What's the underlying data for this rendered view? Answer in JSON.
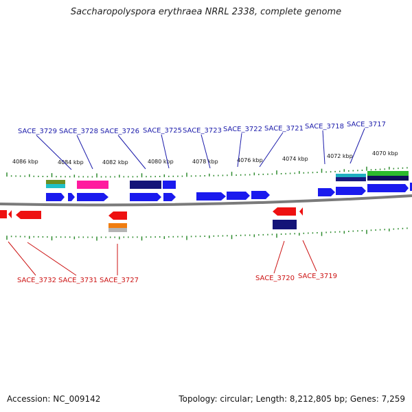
{
  "title": "Saccharopolyspora erythraea NRRL 2338, complete genome",
  "accession": "Accession: NC_009142",
  "summary": "Topology: circular; Length: 8,212,805 bp; Genes: 7,259",
  "colors": {
    "forward_gene": "#1a1aee",
    "reverse_gene": "#ee1111",
    "forward_label": "#1a1aaa",
    "reverse_label": "#cc1111",
    "tick": "#2e8b2e",
    "backbone": "#888888"
  },
  "kbp_ticks": [
    {
      "value": 4086,
      "label": "4086 kbp"
    },
    {
      "value": 4084,
      "label": "4084 kbp"
    },
    {
      "value": 4082,
      "label": "4082 kbp"
    },
    {
      "value": 4080,
      "label": "4080 kbp"
    },
    {
      "value": 4078,
      "label": "4078 kbp"
    },
    {
      "value": 4076,
      "label": "4076 kbp"
    },
    {
      "value": 4074,
      "label": "4074 kbp"
    },
    {
      "value": 4072,
      "label": "4072 kbp"
    },
    {
      "value": 4070,
      "label": "4070 kbp"
    }
  ],
  "forward_gene_labels": [
    "SACE_3729",
    "SACE_3728",
    "SACE_3726",
    "SACE_3725",
    "SACE_3723",
    "SACE_3722",
    "SACE_3721",
    "SACE_3718",
    "SACE_3717"
  ],
  "reverse_gene_labels": [
    "SACE_3732",
    "SACE_3731",
    "SACE_3727",
    "SACE_3720",
    "SACE_3719"
  ]
}
